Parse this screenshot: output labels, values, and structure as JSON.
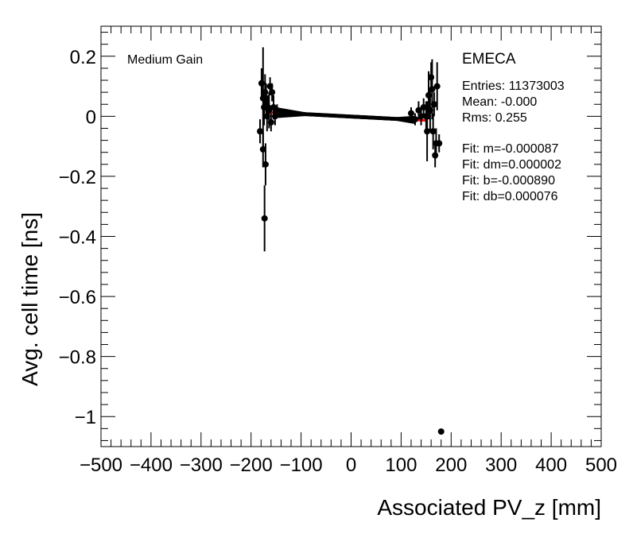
{
  "chart_data": {
    "type": "scatter",
    "xlabel": "Associated PV_z [mm]",
    "ylabel": "Avg. cell time [ns]",
    "xlim": [
      -500,
      500
    ],
    "ylim": [
      -1.1,
      0.3
    ],
    "x_ticks": [
      -500,
      -400,
      -300,
      -200,
      -100,
      0,
      100,
      200,
      300,
      400,
      500
    ],
    "x_tick_labels": [
      "−500",
      "−400",
      "−300",
      "−200",
      "−100",
      "0",
      "100",
      "200",
      "300",
      "400",
      "500"
    ],
    "y_ticks": [
      0.2,
      0,
      -0.2,
      -0.4,
      -0.6,
      -0.8,
      -1
    ],
    "y_tick_labels": [
      "0.2",
      "0",
      "−0.2",
      "−0.4",
      "−0.6",
      "−0.8",
      "−1"
    ],
    "gain_label": "Medium Gain",
    "region_label": "EMECA",
    "stats": [
      "Entries: 11373003",
      "Mean: -0.000",
      "Rms: 0.255",
      "",
      "Fit: m=-0.000087",
      "Fit: dm=0.000002",
      "Fit: b=-0.000890",
      "Fit: db=0.000076"
    ],
    "fit": {
      "m": -8.7e-05,
      "b": -0.00089,
      "x_range": [
        -170,
        150
      ],
      "color": "#ff0000"
    },
    "points": [
      {
        "x": -182,
        "y": -0.05,
        "err": 0.04
      },
      {
        "x": -179,
        "y": 0.11,
        "err": 0.05
      },
      {
        "x": -176,
        "y": 0.06,
        "err": 0.17
      },
      {
        "x": -176,
        "y": -0.11,
        "err": 0.06
      },
      {
        "x": -174,
        "y": 0.03,
        "err": 0.06
      },
      {
        "x": -173,
        "y": -0.34,
        "err": 0.11
      },
      {
        "x": -172,
        "y": 0.08,
        "err": 0.06
      },
      {
        "x": -171,
        "y": -0.16,
        "err": 0.07
      },
      {
        "x": -170,
        "y": 0.06,
        "err": 0.05
      },
      {
        "x": -168,
        "y": 0.0,
        "err": 0.05
      },
      {
        "x": -166,
        "y": 0.03,
        "err": 0.04
      },
      {
        "x": -164,
        "y": 0.02,
        "err": 0.06
      },
      {
        "x": -162,
        "y": 0.1,
        "err": 0.03
      },
      {
        "x": -160,
        "y": -0.02,
        "err": 0.03
      },
      {
        "x": -158,
        "y": 0.08,
        "err": 0.03
      },
      {
        "x": -155,
        "y": 0.03,
        "err": 0.04
      },
      {
        "x": -152,
        "y": 0.0,
        "err": 0.03
      },
      {
        "x": -148,
        "y": 0.02,
        "err": 0.02
      },
      {
        "x": 120,
        "y": 0.01,
        "err": 0.02
      },
      {
        "x": 128,
        "y": -0.01,
        "err": 0.02
      },
      {
        "x": 135,
        "y": 0.02,
        "err": 0.03
      },
      {
        "x": 140,
        "y": 0.0,
        "err": 0.03
      },
      {
        "x": 145,
        "y": 0.03,
        "err": 0.03
      },
      {
        "x": 150,
        "y": 0.0,
        "err": 0.05
      },
      {
        "x": 152,
        "y": -0.05,
        "err": 0.1
      },
      {
        "x": 155,
        "y": 0.07,
        "err": 0.08
      },
      {
        "x": 158,
        "y": 0.02,
        "err": 0.07
      },
      {
        "x": 160,
        "y": 0.13,
        "err": 0.05
      },
      {
        "x": 162,
        "y": 0.09,
        "err": 0.1
      },
      {
        "x": 164,
        "y": -0.05,
        "err": 0.06
      },
      {
        "x": 166,
        "y": 0.04,
        "err": 0.04
      },
      {
        "x": 168,
        "y": -0.13,
        "err": 0.04
      },
      {
        "x": 170,
        "y": -0.09,
        "err": 0.05
      },
      {
        "x": 172,
        "y": 0.1,
        "err": 0.08
      },
      {
        "x": 176,
        "y": -0.09,
        "err": 0.03
      },
      {
        "x": 180,
        "y": -1.05,
        "err": 0.0
      }
    ]
  }
}
